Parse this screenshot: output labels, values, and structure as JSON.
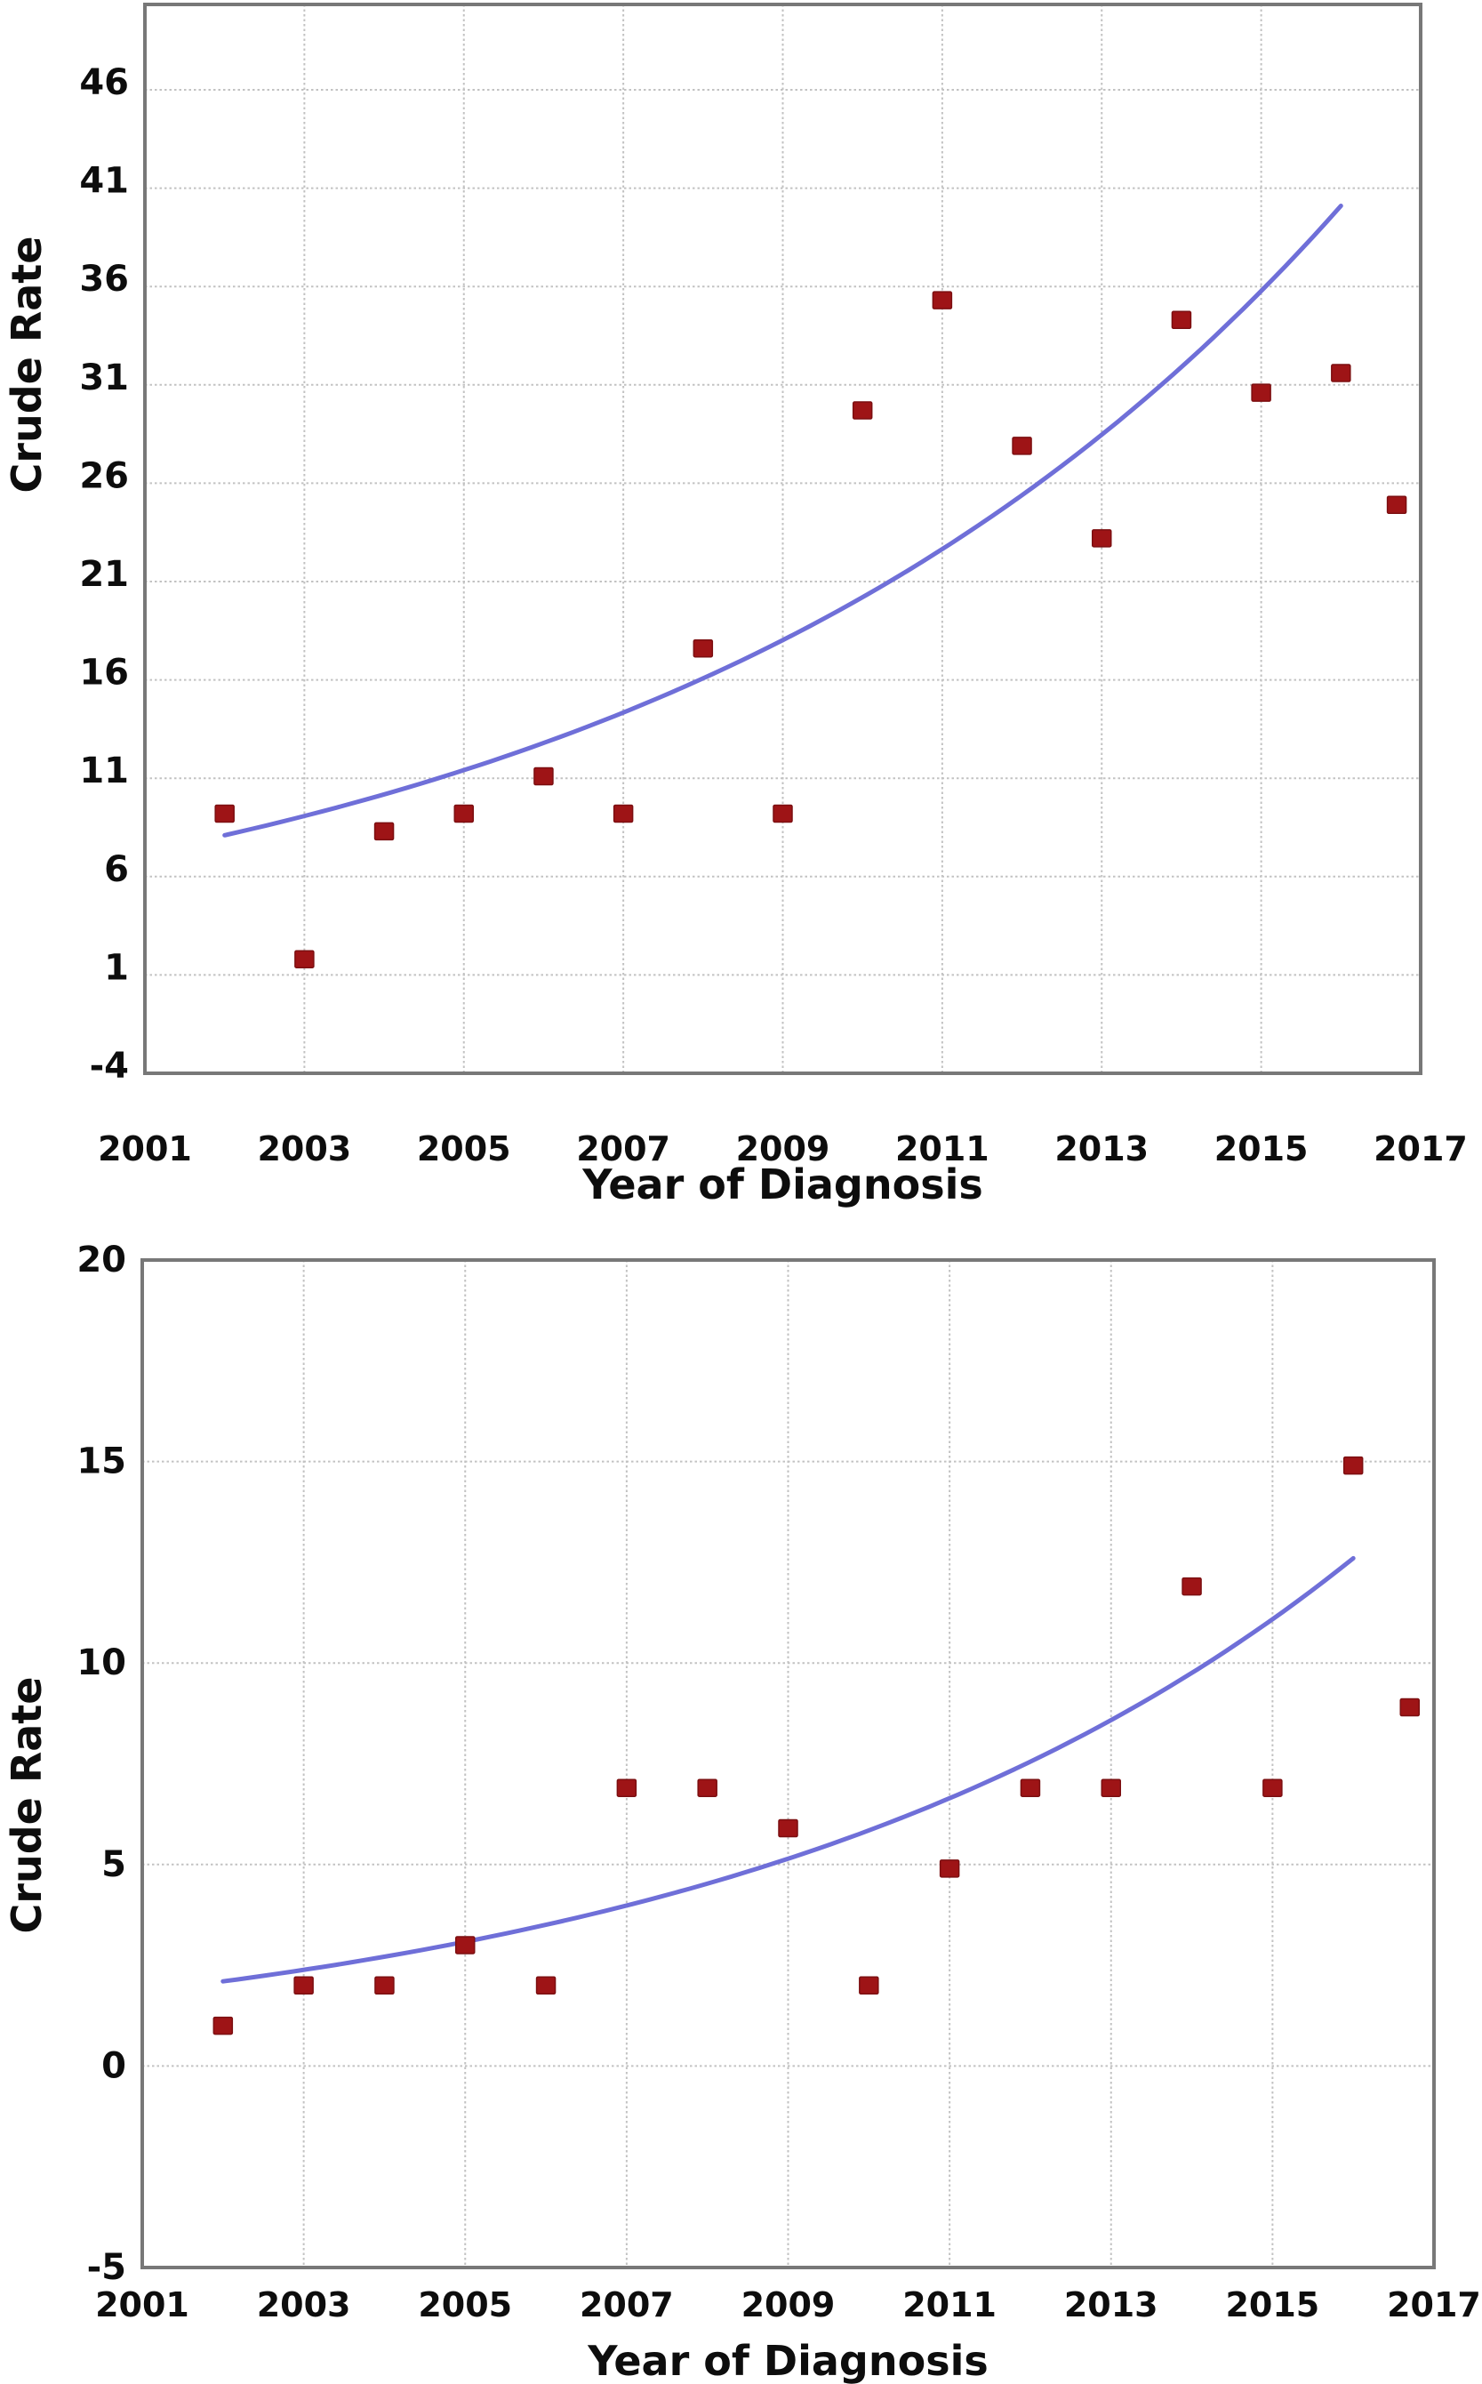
{
  "figure": {
    "description": "Two stacked scatter plots of crude rate by year of diagnosis with exponential trend lines",
    "background": "#ffffff"
  },
  "style": {
    "point_color": "#9e1416",
    "point_edge_color": "#7c0f11",
    "trend_color": "#6f6fd8",
    "grid_color": "#c2c2c2",
    "axis_color": "#787878",
    "text_color": "#0d0d0d"
  },
  "chart_data": [
    {
      "type": "scatter",
      "title": "",
      "xlabel": "Year of Diagnosis",
      "ylabel": "Crude Rate",
      "xlim": [
        2001,
        2017
      ],
      "ylim": [
        -4,
        50.34
      ],
      "grid": true,
      "legend": "none",
      "x_ticks": [
        2001,
        2003,
        2005,
        2007,
        2009,
        2011,
        2013,
        2015,
        2017
      ],
      "x_tick_labels": [
        "2001",
        "2003",
        "2005",
        "2007",
        "2009",
        "2011",
        "2013",
        "2015",
        "2017"
      ],
      "y_ticks": [
        -4,
        1,
        6,
        11,
        16,
        21,
        26,
        31,
        36,
        41,
        46
      ],
      "y_tick_labels": [
        "-4",
        "1",
        "6",
        "11",
        "16",
        "21",
        "26",
        "31",
        "36",
        "41",
        "46"
      ],
      "points": [
        [
          2002,
          9.2
        ],
        [
          2003,
          1.8
        ],
        [
          2004,
          8.3
        ],
        [
          2005,
          9.2
        ],
        [
          2006,
          11.1
        ],
        [
          2007,
          9.2
        ],
        [
          2008,
          17.6
        ],
        [
          2009,
          9.2
        ],
        [
          2010,
          29.7
        ],
        [
          2011,
          35.3
        ],
        [
          2012,
          27.9
        ],
        [
          2013,
          23.2
        ],
        [
          2014,
          34.3
        ],
        [
          2015,
          30.6
        ],
        [
          2016,
          31.6
        ],
        [
          2016.7,
          24.9
        ]
      ],
      "trend": {
        "type": "exponential",
        "x_start": 2002,
        "x_end": 2016,
        "y_start": 8.1,
        "y_end": 40.1
      }
    },
    {
      "type": "scatter",
      "title": "",
      "xlabel": "Year of Diagnosis",
      "ylabel": "Crude Rate",
      "xlim": [
        2001,
        2017
      ],
      "ylim": [
        -5,
        20
      ],
      "grid": true,
      "legend": "none",
      "x_ticks": [
        2001,
        2003,
        2005,
        2007,
        2009,
        2011,
        2013,
        2015,
        2017
      ],
      "x_tick_labels": [
        "2001",
        "2003",
        "2005",
        "2007",
        "2009",
        "2011",
        "2013",
        "2015",
        "2017"
      ],
      "y_ticks": [
        -5,
        0,
        5,
        10,
        15,
        20
      ],
      "y_tick_labels": [
        "-5",
        "0",
        "5",
        "10",
        "15",
        "20"
      ],
      "points": [
        [
          2002,
          1.0
        ],
        [
          2003,
          2.0
        ],
        [
          2004,
          2.0
        ],
        [
          2005,
          3.0
        ],
        [
          2006,
          2.0
        ],
        [
          2007,
          6.9
        ],
        [
          2008,
          6.9
        ],
        [
          2009,
          5.9
        ],
        [
          2010,
          2.0
        ],
        [
          2011,
          4.9
        ],
        [
          2012,
          6.9
        ],
        [
          2013,
          6.9
        ],
        [
          2014,
          11.9
        ],
        [
          2015,
          6.9
        ],
        [
          2016,
          14.9
        ],
        [
          2016.7,
          8.9
        ]
      ],
      "trend": {
        "type": "exponential",
        "x_start": 2002,
        "x_end": 2016,
        "y_start": 2.1,
        "y_end": 12.6
      }
    }
  ]
}
